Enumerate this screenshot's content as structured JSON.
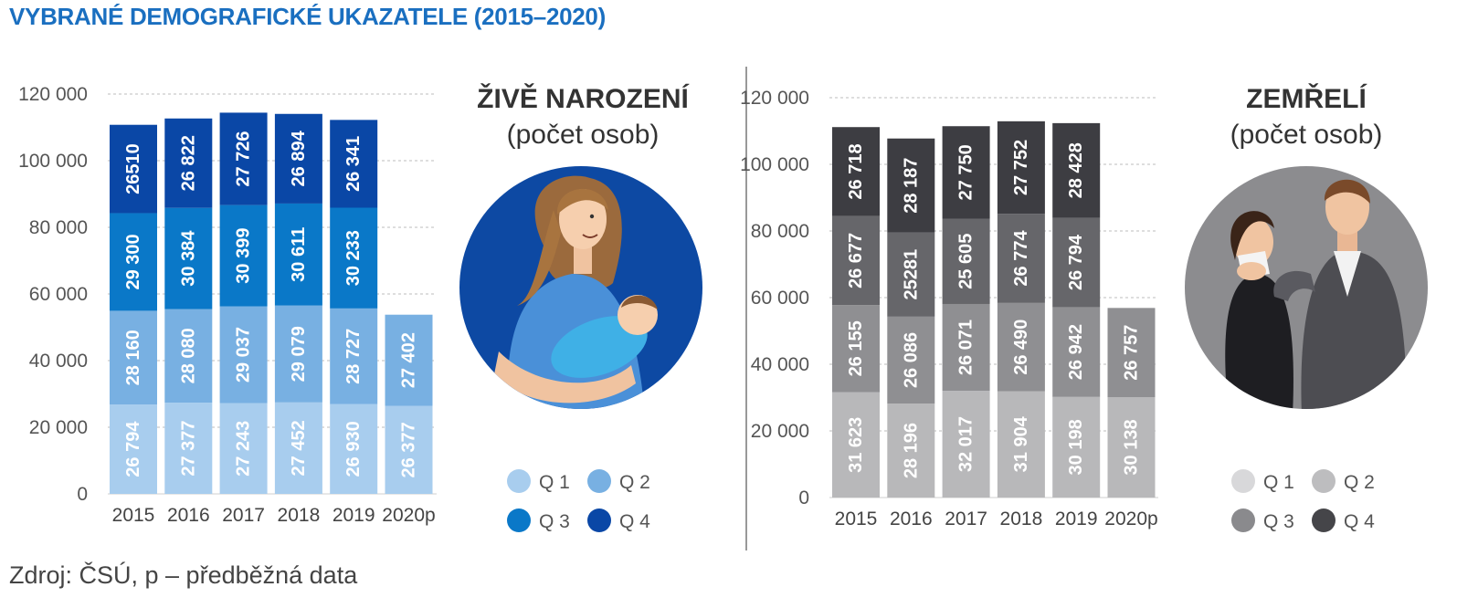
{
  "title": "VYBRANÉ DEMOGRAFICKÉ UKAZATELE (2015–2020)",
  "source": "Zdroj: ČSÚ, p – předběžná data",
  "chart_data": [
    {
      "type": "bar",
      "stacked": true,
      "title": "ŽIVĚ NAROZENÍ",
      "subtitle": "(počet osob)",
      "categories": [
        "2015",
        "2016",
        "2017",
        "2018",
        "2019",
        "2020p"
      ],
      "ylim": [
        0,
        120000
      ],
      "yticks": [
        0,
        20000,
        40000,
        60000,
        80000,
        100000,
        120000
      ],
      "ytick_labels": [
        "0",
        "20 000",
        "40 000",
        "60 000",
        "80 000",
        "100 000",
        "120 000"
      ],
      "grid": true,
      "legend_position": "right",
      "series": [
        {
          "name": "Q 1",
          "color": "#a8cdee",
          "values": [
            26794,
            27377,
            27243,
            27452,
            26930,
            26377
          ],
          "labels": [
            "26 794",
            "27 377",
            "27 243",
            "27 452",
            "26 930",
            "26 377"
          ]
        },
        {
          "name": "Q 2",
          "color": "#78b0e2",
          "values": [
            28160,
            28080,
            29037,
            29079,
            28727,
            27402
          ],
          "labels": [
            "28 160",
            "28 080",
            "29 037",
            "29 079",
            "28 727",
            "27 402"
          ]
        },
        {
          "name": "Q 3",
          "color": "#0a78c8",
          "values": [
            29300,
            30384,
            30399,
            30611,
            30233,
            null
          ],
          "labels": [
            "29 300",
            "30 384",
            "30 399",
            "30 611",
            "30 233",
            ""
          ]
        },
        {
          "name": "Q 4",
          "color": "#0a47a6",
          "values": [
            26510,
            26822,
            27726,
            26894,
            26341,
            null
          ],
          "labels": [
            "26510",
            "26 822",
            "27 726",
            "26 894",
            "26 341",
            ""
          ]
        }
      ]
    },
    {
      "type": "bar",
      "stacked": true,
      "title": "ZEMŘELÍ",
      "subtitle": "(počet osob)",
      "categories": [
        "2015",
        "2016",
        "2017",
        "2018",
        "2019",
        "2020p"
      ],
      "ylim": [
        0,
        120000
      ],
      "yticks": [
        0,
        20000,
        40000,
        60000,
        80000,
        100000,
        120000
      ],
      "ytick_labels": [
        "0",
        "20 000",
        "40 000",
        "60 000",
        "80 000",
        "100 000",
        "120 000"
      ],
      "grid": true,
      "legend_position": "right",
      "series": [
        {
          "name": "Q 1",
          "color": "#b8b8ba",
          "values": [
            31623,
            28196,
            32017,
            31904,
            30198,
            30138
          ],
          "labels": [
            "31 623",
            "28 196",
            "32 017",
            "31 904",
            "30 198",
            "30 138"
          ]
        },
        {
          "name": "Q 2",
          "color": "#8f8f92",
          "values": [
            26155,
            26086,
            26071,
            26490,
            26942,
            26757
          ],
          "labels": [
            "26 155",
            "26 086",
            "26 071",
            "26 490",
            "26 942",
            "26 757"
          ]
        },
        {
          "name": "Q 3",
          "color": "#66666a",
          "values": [
            26677,
            25281,
            25605,
            26774,
            26794,
            null
          ],
          "labels": [
            "26 677",
            "25281",
            "25 605",
            "26 774",
            "26 794",
            ""
          ]
        },
        {
          "name": "Q 4",
          "color": "#3d3d42",
          "values": [
            26718,
            28187,
            27750,
            27752,
            28428,
            null
          ],
          "labels": [
            "26 718",
            "28 187",
            "27 750",
            "27 752",
            "28 428",
            ""
          ]
        }
      ],
      "legend_colors": [
        "#d8d8da",
        "#bdbdbf",
        "#8a8a8d",
        "#454549"
      ]
    }
  ]
}
